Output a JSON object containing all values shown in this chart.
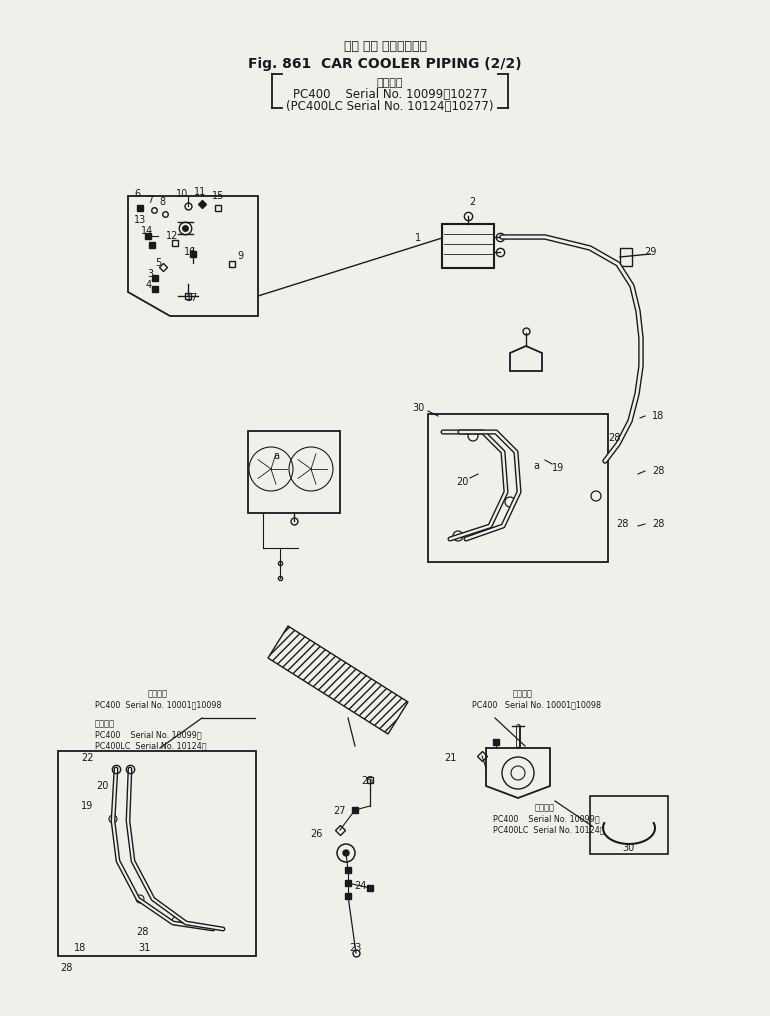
{
  "title_japanese": "カー クー ラパイピング",
  "title_main": "Fig. 861  CAR COOLER PIPING (2/2)",
  "subtitle1": "適用号機",
  "subtitle2": "PC400    Serial No. 10099～10277",
  "subtitle3": "(PC400LC Serial No. 10124～10277)",
  "bg_color": "#f0f0eb",
  "line_color": "#1a1a1a",
  "fig_width": 7.7,
  "fig_height": 10.16
}
